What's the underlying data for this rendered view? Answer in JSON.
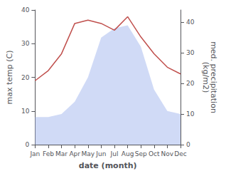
{
  "chart_data": {
    "type": "line",
    "categories": [
      "Jan",
      "Feb",
      "Mar",
      "Apr",
      "May",
      "Jun",
      "Jul",
      "Aug",
      "Sep",
      "Oct",
      "Nov",
      "Dec"
    ],
    "xlabel": "date (month)",
    "ylabel": "max temp (C)",
    "y2label": "med. precipitation\n(kg/m2)",
    "series": [
      {
        "type": "area",
        "axis": "y2",
        "color": "#aabbee",
        "values": [
          9,
          9,
          10,
          14,
          22,
          35,
          38,
          39,
          32,
          18,
          11,
          10
        ]
      },
      {
        "type": "line",
        "color": "#c0504d",
        "values": [
          19,
          22,
          27,
          36,
          37,
          36,
          34,
          38,
          32,
          27,
          23,
          21
        ]
      }
    ],
    "ylim": [
      0,
      40
    ],
    "yticks": [
      0,
      10,
      20,
      30,
      40
    ],
    "y2lim": [
      0,
      44
    ],
    "y2ticks": [
      0,
      10,
      20,
      30,
      40
    ],
    "grid": false
  }
}
